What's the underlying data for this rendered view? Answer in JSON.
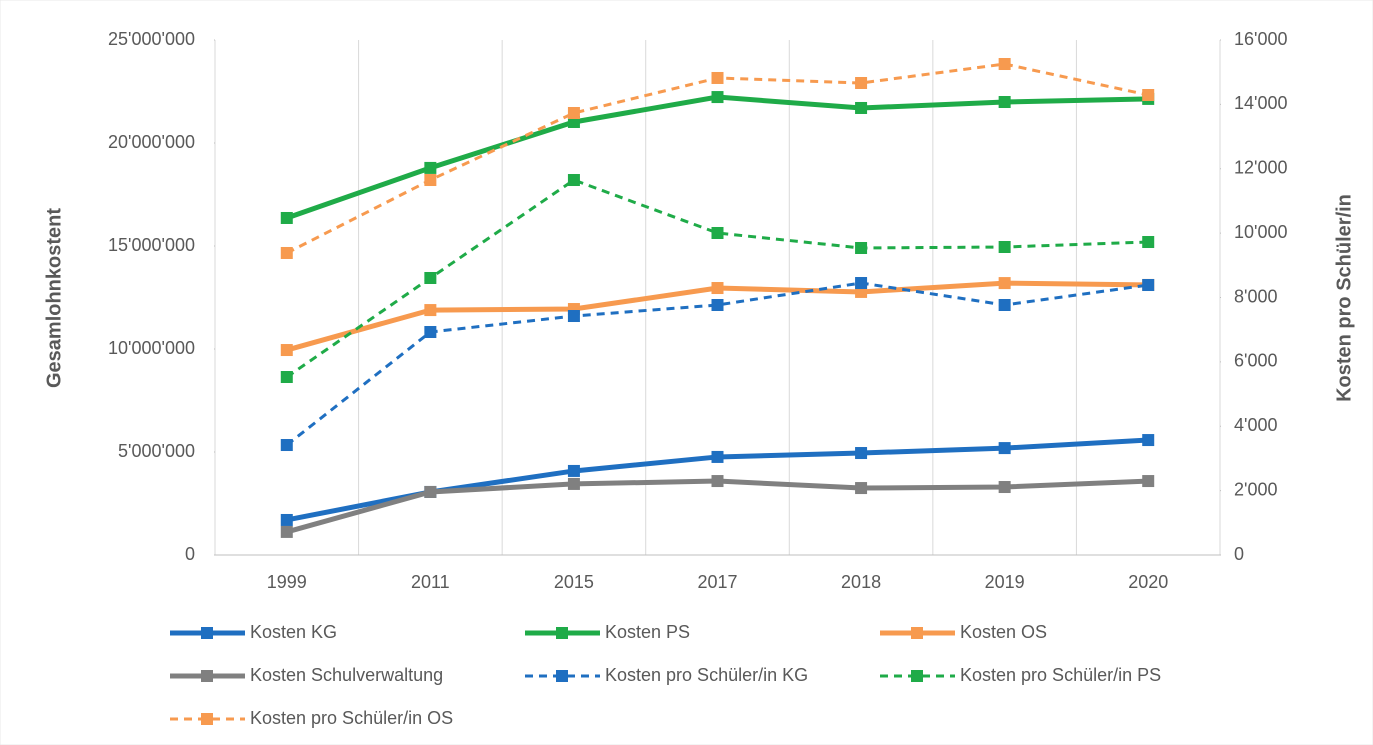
{
  "chart_data": {
    "type": "line",
    "y_label": "Gesamlohnkostent",
    "y2_label": "Kosten pro Schüler/in",
    "categories": [
      "1999",
      "2011",
      "2015",
      "2017",
      "2018",
      "2019",
      "2020"
    ],
    "ylim": [
      0,
      25000000
    ],
    "yticks": [
      0,
      {
        "value": 5000000,
        "label": "5'000'000"
      },
      {
        "value": 10000000,
        "label": "10'000'000"
      },
      {
        "value": 15000000,
        "label": "15'000'000"
      },
      {
        "value": 20000000,
        "label": "20'000'000"
      },
      {
        "value": 25000000,
        "label": "25'000'000"
      }
    ],
    "y2lim": [
      0,
      16000
    ],
    "y2ticks": [
      0,
      {
        "value": 2000,
        "label": "2'000"
      },
      {
        "value": 4000,
        "label": "4'000"
      },
      {
        "value": 6000,
        "label": "6'000"
      },
      {
        "value": 8000,
        "label": "8'000"
      },
      {
        "value": 10000,
        "label": "10'000"
      },
      {
        "value": 12000,
        "label": "12'000"
      },
      {
        "value": 14000,
        "label": "14'000"
      },
      {
        "value": 16000,
        "label": "16'000"
      }
    ],
    "grid": false,
    "legend": "bottom",
    "series": [
      {
        "name": "Kosten KG",
        "color": "#1f6fc1",
        "style": "solid",
        "values": [
          1700000,
          3060000,
          4080000,
          4760000,
          4950000,
          5190000,
          5580000
        ]
      },
      {
        "name": "Kosten PS",
        "color": "#1fab48",
        "style": "solid",
        "values": [
          16360000,
          18790000,
          21020000,
          22230000,
          21700000,
          21990000,
          22140000
        ]
      },
      {
        "name": "Kosten OS",
        "color": "#f79a4f",
        "style": "solid",
        "values": [
          9950000,
          11890000,
          11940000,
          12960000,
          12770000,
          13200000,
          13110000
        ]
      },
      {
        "name": "Kosten Schulverwaltung",
        "color": "#808080",
        "style": "solid",
        "values": [
          1120000,
          3060000,
          3450000,
          3590000,
          3250000,
          3300000,
          3590000
        ]
      },
      {
        "name": "Kosten pro Schüler/in KG",
        "color": "#1f6fc1",
        "style": "dashed",
        "axis": "y2",
        "values": [
          3417,
          6928,
          7425,
          7767,
          8450,
          7767,
          8388
        ]
      },
      {
        "name": "Kosten pro Schüler/in PS",
        "color": "#1fab48",
        "style": "dashed",
        "axis": "y2",
        "values": [
          5530,
          8606,
          11650,
          10004,
          9538,
          9569,
          9724
        ]
      },
      {
        "name": "Kosten pro Schüler/in OS",
        "color": "#f79a4f",
        "style": "dashed",
        "axis": "y2",
        "values": [
          9383,
          11650,
          13732,
          14820,
          14664,
          15254,
          14291
        ]
      }
    ]
  }
}
